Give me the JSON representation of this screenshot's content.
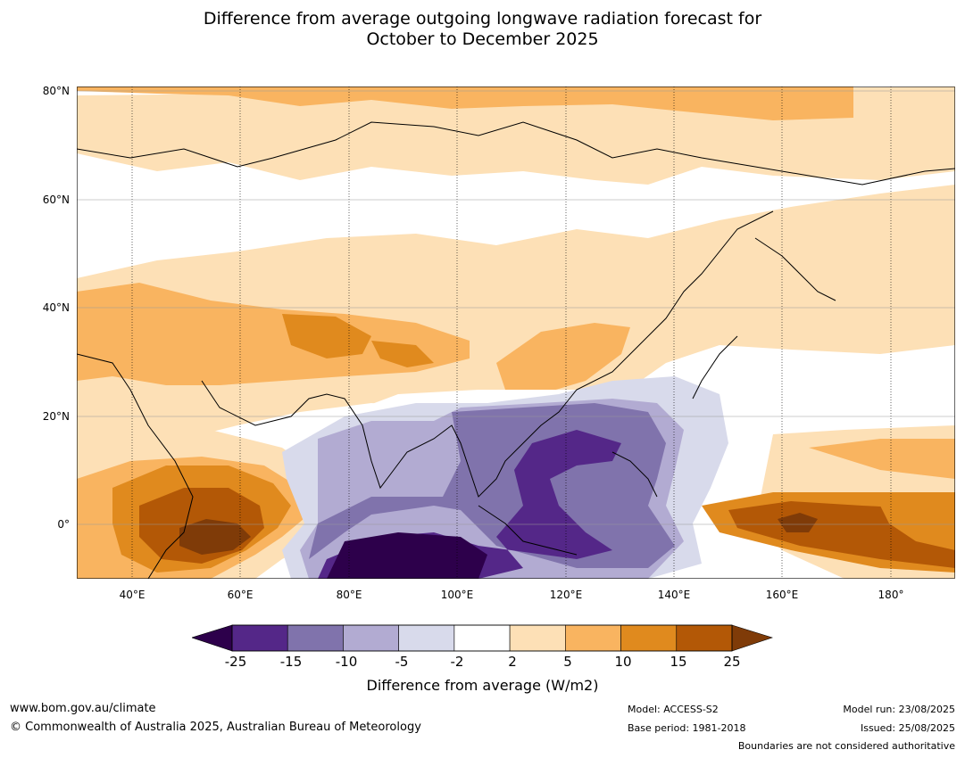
{
  "title": {
    "line1": "Difference from average outgoing longwave radiation forecast for",
    "line2": "October to December 2025"
  },
  "map": {
    "lat_labels": [
      "80°N",
      "60°N",
      "40°N",
      "20°N",
      "0°"
    ],
    "lon_labels": [
      "40°E",
      "60°E",
      "80°E",
      "100°E",
      "120°E",
      "140°E",
      "160°E",
      "180°"
    ],
    "colors": {
      "ocean_land_neutral": "#ffffff",
      "pos_2_5": "#fde0b6",
      "pos_5_10": "#f9b460",
      "pos_10_15": "#e08a1e",
      "pos_15_25": "#b35806",
      "pos_25_plus": "#7f3b08",
      "neg_2_5": "#d8daeb",
      "neg_5_10": "#b2abd2",
      "neg_10_15": "#8073ac",
      "neg_15_25": "#542788",
      "neg_25_plus": "#2d004b"
    }
  },
  "colorbar": {
    "ticks": [
      "-25",
      "-15",
      "-10",
      "-5",
      "-2",
      "2",
      "5",
      "10",
      "15",
      "25"
    ],
    "colors": [
      "#542788",
      "#8073ac",
      "#b2abd2",
      "#d8daeb",
      "#ffffff",
      "#fde0b6",
      "#f9b460",
      "#e08a1e",
      "#b35806"
    ],
    "low_extend": "#2d004b",
    "high_extend": "#7f3b08",
    "label": "Difference from average (W/m2)"
  },
  "footer": {
    "website": "www.bom.gov.au/climate",
    "copyright": "© Commonwealth of Australia 2025, Australian Bureau of Meteorology",
    "model": "Model: ACCESS-S2",
    "base_period": "Base period: 1981-2018",
    "model_run": "Model run: 23/08/2025",
    "issued": "Issued: 25/08/2025",
    "disclaimer": "Boundaries are not considered authoritative"
  }
}
